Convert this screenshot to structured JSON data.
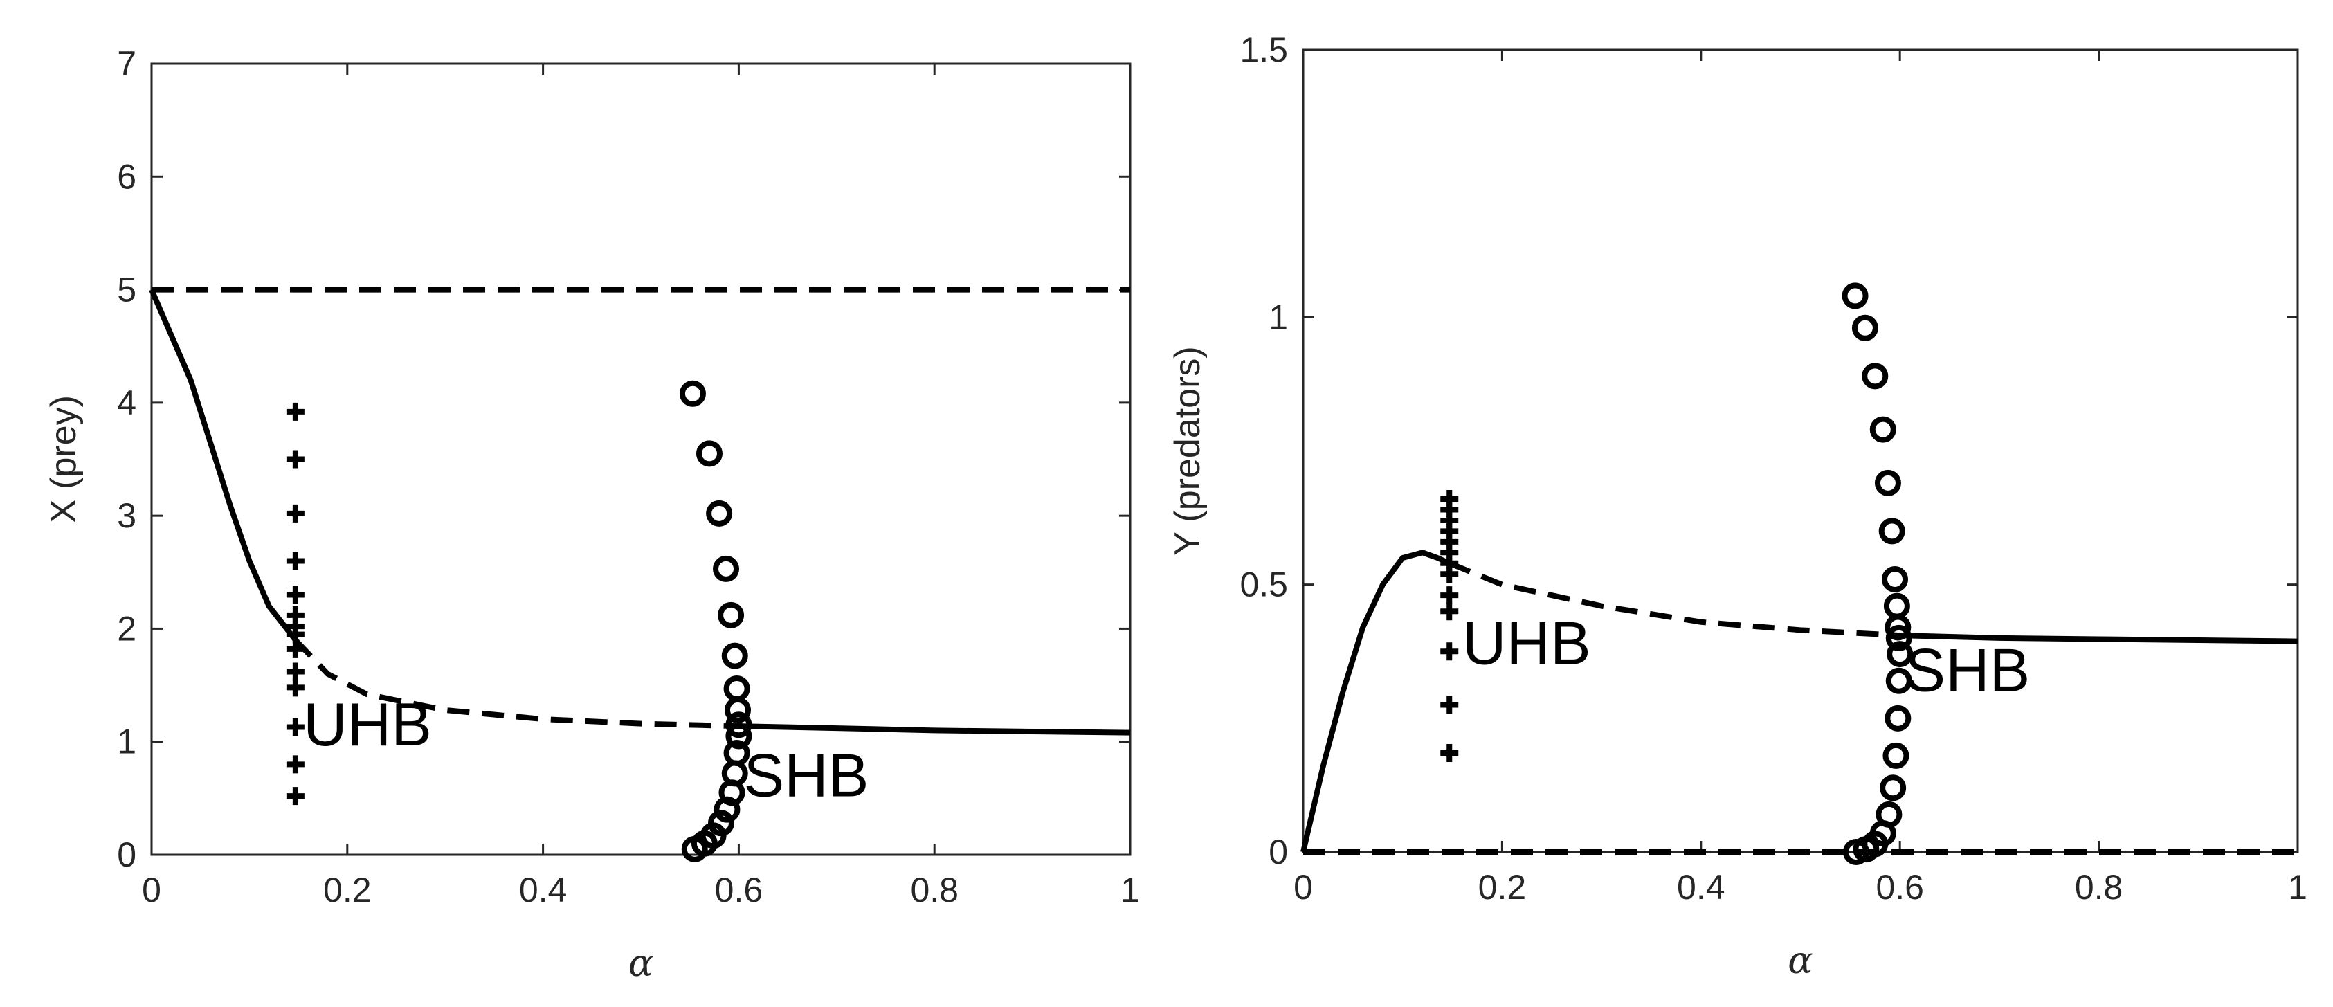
{
  "chart_data": [
    {
      "type": "line",
      "xlabel": "α",
      "ylabel": "X (prey)",
      "xlim": [
        0,
        1
      ],
      "ylim": [
        0,
        7
      ],
      "xticks": [
        "0",
        "0.2",
        "0.4",
        "0.6",
        "0.8",
        "1"
      ],
      "yticks": [
        "0",
        "1",
        "2",
        "3",
        "4",
        "5",
        "6",
        "7"
      ],
      "grid": false,
      "series": [
        {
          "style": "dashed",
          "x": [
            0,
            1
          ],
          "y": [
            5,
            5
          ]
        },
        {
          "style": "solid",
          "x": [
            0,
            0.04,
            0.08,
            0.1,
            0.12,
            0.147
          ],
          "y": [
            5,
            4.2,
            3.1,
            2.6,
            2.2,
            1.9
          ]
        },
        {
          "style": "dashed",
          "x": [
            0.147,
            0.18,
            0.22,
            0.3,
            0.4,
            0.5,
            0.59
          ],
          "y": [
            1.9,
            1.6,
            1.42,
            1.28,
            1.2,
            1.16,
            1.14
          ]
        },
        {
          "style": "solid",
          "x": [
            0.59,
            0.7,
            0.8,
            0.9,
            1.0
          ],
          "y": [
            1.14,
            1.12,
            1.1,
            1.09,
            1.08
          ]
        },
        {
          "style": "plus",
          "x": [
            0.147,
            0.147,
            0.147,
            0.147,
            0.147,
            0.147,
            0.147,
            0.147,
            0.147,
            0.147,
            0.147,
            0.147,
            0.147,
            0.147
          ],
          "y": [
            3.92,
            3.5,
            3.02,
            2.6,
            2.3,
            2.12,
            2.02,
            1.95,
            1.82,
            1.62,
            1.48,
            1.13,
            0.8,
            0.52
          ]
        },
        {
          "style": "circle",
          "x": [
            0.553,
            0.57,
            0.58,
            0.587,
            0.592,
            0.596,
            0.598,
            0.599,
            0.6,
            0.6,
            0.598,
            0.596,
            0.593,
            0.588,
            0.582,
            0.574,
            0.565,
            0.555
          ],
          "y": [
            4.08,
            3.55,
            3.02,
            2.53,
            2.12,
            1.76,
            1.47,
            1.28,
            1.15,
            1.05,
            0.9,
            0.72,
            0.55,
            0.4,
            0.28,
            0.17,
            0.1,
            0.05
          ]
        }
      ],
      "annotations": [
        {
          "text": "UHB",
          "x": 0.155,
          "y": 1.15
        },
        {
          "text": "SHB",
          "x": 0.605,
          "y": 0.7
        }
      ]
    },
    {
      "type": "line",
      "xlabel": "α",
      "ylabel": "Y (predators)",
      "xlim": [
        0,
        1
      ],
      "ylim": [
        0,
        1.5
      ],
      "xticks": [
        "0",
        "0.2",
        "0.4",
        "0.6",
        "0.8",
        "1"
      ],
      "yticks": [
        "0",
        "0.5",
        "1",
        "1.5"
      ],
      "grid": false,
      "series": [
        {
          "style": "dashed",
          "x": [
            0,
            1
          ],
          "y": [
            0,
            0
          ]
        },
        {
          "style": "solid",
          "x": [
            0,
            0.02,
            0.04,
            0.06,
            0.08,
            0.1,
            0.12,
            0.135,
            0.147
          ],
          "y": [
            0,
            0.16,
            0.3,
            0.42,
            0.5,
            0.55,
            0.56,
            0.55,
            0.54
          ]
        },
        {
          "style": "dashed",
          "x": [
            0.147,
            0.2,
            0.3,
            0.4,
            0.5,
            0.6
          ],
          "y": [
            0.54,
            0.5,
            0.46,
            0.43,
            0.415,
            0.405
          ]
        },
        {
          "style": "solid",
          "x": [
            0.6,
            0.7,
            0.8,
            0.9,
            1.0
          ],
          "y": [
            0.405,
            0.4,
            0.398,
            0.396,
            0.394
          ]
        },
        {
          "style": "plus",
          "x": [
            0.147,
            0.147,
            0.147,
            0.147,
            0.147,
            0.147,
            0.147,
            0.147,
            0.147,
            0.147,
            0.147,
            0.147,
            0.147
          ],
          "y": [
            0.66,
            0.64,
            0.62,
            0.6,
            0.58,
            0.56,
            0.54,
            0.52,
            0.48,
            0.45,
            0.375,
            0.275,
            0.185
          ]
        },
        {
          "style": "circle",
          "x": [
            0.555,
            0.565,
            0.575,
            0.583,
            0.588,
            0.592,
            0.595,
            0.597,
            0.598,
            0.599,
            0.6,
            0.599,
            0.598,
            0.596,
            0.593,
            0.589,
            0.583,
            0.575,
            0.566,
            0.556
          ],
          "y": [
            1.04,
            0.98,
            0.89,
            0.79,
            0.69,
            0.6,
            0.51,
            0.46,
            0.42,
            0.4,
            0.37,
            0.32,
            0.25,
            0.18,
            0.12,
            0.07,
            0.035,
            0.015,
            0.005,
            0.0
          ]
        }
      ],
      "annotations": [
        {
          "text": "UHB",
          "x": 0.16,
          "y": 0.39
        },
        {
          "text": "SHB",
          "x": 0.605,
          "y": 0.34
        }
      ]
    }
  ]
}
